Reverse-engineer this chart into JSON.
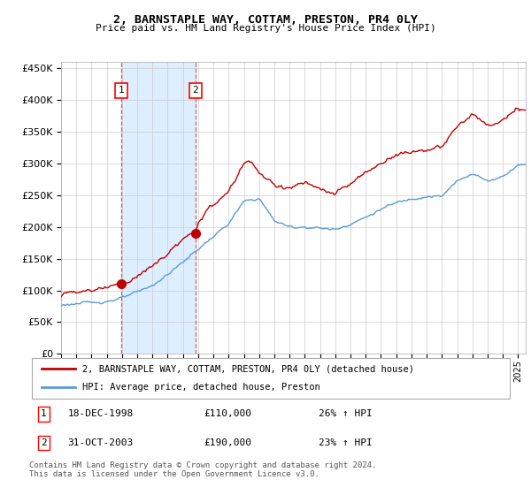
{
  "title": "2, BARNSTAPLE WAY, COTTAM, PRESTON, PR4 0LY",
  "subtitle": "Price paid vs. HM Land Registry's House Price Index (HPI)",
  "legend_line1": "2, BARNSTAPLE WAY, COTTAM, PRESTON, PR4 0LY (detached house)",
  "legend_line2": "HPI: Average price, detached house, Preston",
  "annotation1_date": "18-DEC-1998",
  "annotation1_price": "£110,000",
  "annotation1_hpi": "26% ↑ HPI",
  "annotation2_date": "31-OCT-2003",
  "annotation2_price": "£190,000",
  "annotation2_hpi": "23% ↑ HPI",
  "footnote": "Contains HM Land Registry data © Crown copyright and database right 2024.\nThis data is licensed under the Open Government Licence v3.0.",
  "sale1_year": 1998.96,
  "sale1_value": 110000,
  "sale2_year": 2003.83,
  "sale2_value": 190000,
  "hpi_color": "#5b9bd5",
  "price_color": "#c00000",
  "shading_color": "#ddeeff",
  "ylim_min": 0,
  "ylim_max": 460000,
  "yticks": [
    0,
    50000,
    100000,
    150000,
    200000,
    250000,
    300000,
    350000,
    400000,
    450000
  ],
  "xlim_min": 1995,
  "xlim_max": 2025.5,
  "background_color": "#ffffff",
  "grid_color": "#cccccc",
  "hpi_kx": [
    1995,
    1996,
    1997,
    1998,
    1999,
    2000,
    2001,
    2002,
    2003,
    2004,
    2005,
    2006,
    2007,
    2008,
    2009,
    2010,
    2011,
    2012,
    2013,
    2014,
    2015,
    2016,
    2017,
    2018,
    2019,
    2020,
    2021,
    2022,
    2023,
    2024,
    2025
  ],
  "hpi_ky": [
    78000,
    79000,
    81000,
    83000,
    88000,
    97000,
    108000,
    125000,
    145000,
    165000,
    185000,
    205000,
    240000,
    245000,
    210000,
    200000,
    200000,
    198000,
    196000,
    205000,
    215000,
    228000,
    238000,
    245000,
    248000,
    248000,
    272000,
    285000,
    272000,
    280000,
    298000
  ],
  "price_kx": [
    1995,
    1996,
    1997,
    1998,
    1998.96,
    1999.5,
    2000,
    2001,
    2002,
    2003,
    2003.83,
    2004,
    2005,
    2006,
    2007,
    2007.5,
    2008,
    2009,
    2010,
    2011,
    2012,
    2013,
    2014,
    2015,
    2016,
    2017,
    2018,
    2019,
    2020,
    2021,
    2022,
    2023,
    2024,
    2025
  ],
  "price_ky": [
    98000,
    98500,
    100000,
    106000,
    110000,
    115000,
    122000,
    138000,
    158000,
    180000,
    190000,
    210000,
    235000,
    255000,
    300000,
    305000,
    285000,
    265000,
    262000,
    270000,
    258000,
    252000,
    268000,
    285000,
    300000,
    315000,
    318000,
    322000,
    325000,
    358000,
    378000,
    358000,
    368000,
    385000
  ]
}
